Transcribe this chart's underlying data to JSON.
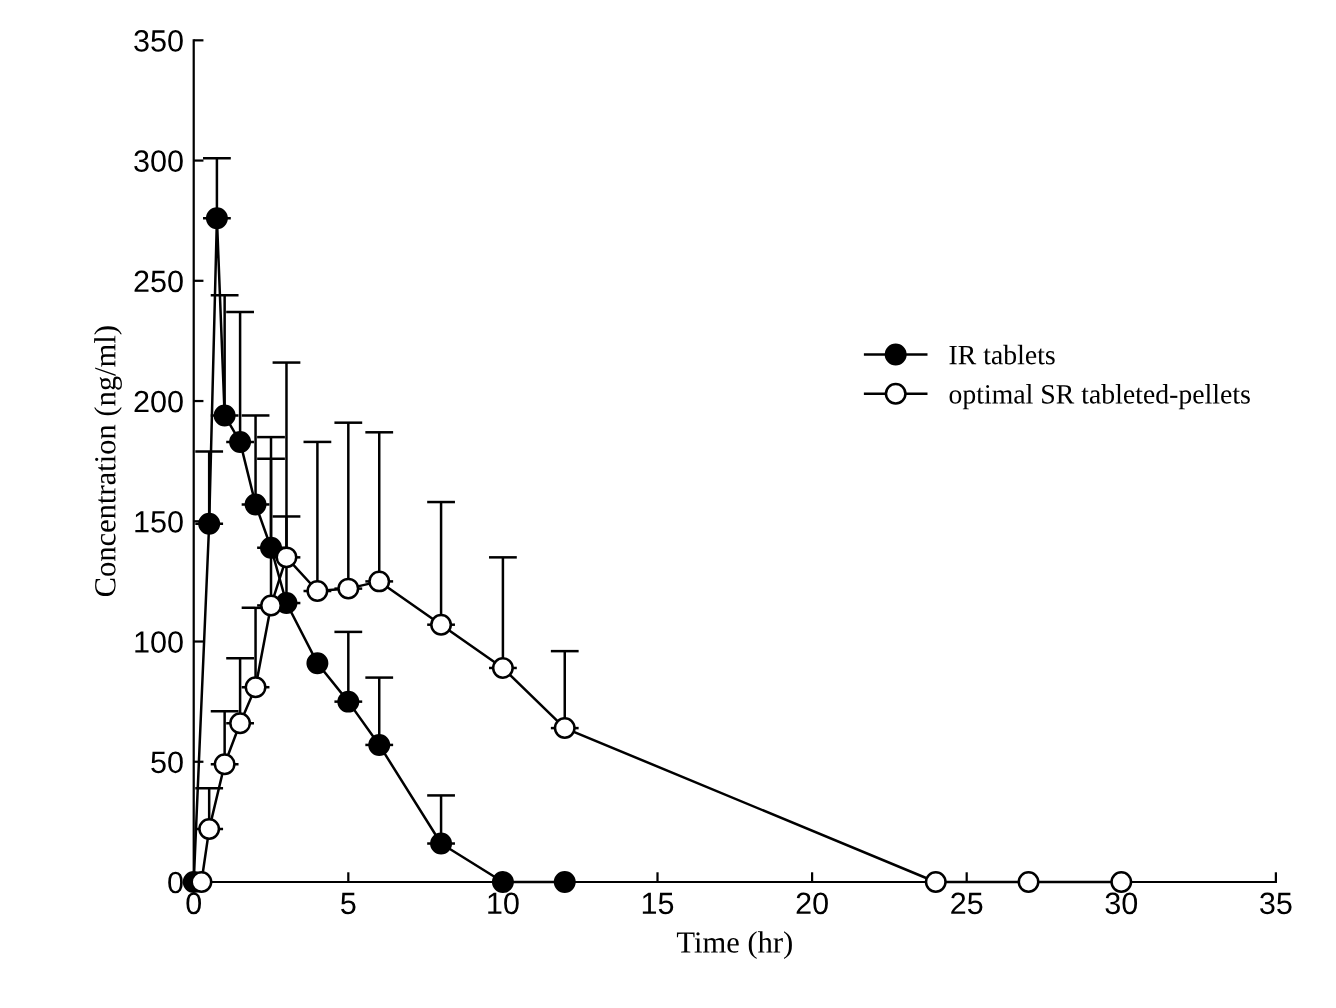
{
  "chart_data": {
    "type": "line",
    "xlabel": "Time (hr)",
    "ylabel": "Concentration (ng/ml)",
    "xlim": [
      0,
      35
    ],
    "xticks": [
      0,
      5,
      10,
      15,
      20,
      25,
      30,
      35
    ],
    "ylim": [
      0,
      350
    ],
    "yticks": [
      0,
      50,
      100,
      150,
      200,
      250,
      300,
      350
    ],
    "grid": false,
    "legend": "right",
    "line_style": "solid",
    "series": [
      {
        "name": "IR tablets",
        "color": "#000000",
        "marker": "circle",
        "x": [
          0,
          0.5,
          0.75,
          1,
          1.5,
          2,
          2.5,
          3,
          4,
          5,
          6,
          8,
          10,
          12
        ],
        "values": [
          0,
          149,
          276,
          194,
          183,
          157,
          139,
          116,
          91,
          75,
          57,
          16,
          0,
          0
        ],
        "errors": [
          null,
          [
            149,
            179
          ],
          [
            276,
            301
          ],
          [
            194,
            244
          ],
          [
            183,
            237
          ],
          [
            157,
            194
          ],
          [
            139,
            185
          ],
          [
            116,
            152
          ],
          null,
          [
            75,
            104
          ],
          [
            57,
            85
          ],
          [
            16,
            36
          ],
          null,
          null
        ]
      },
      {
        "name": "optimal SR tableted-pellets",
        "color": "#ffffff",
        "marker": "circle",
        "x": [
          0.25,
          0.5,
          1,
          1.5,
          2,
          2.5,
          3,
          4,
          5,
          6,
          8,
          10,
          12,
          24,
          27,
          30
        ],
        "values": [
          0,
          22,
          49,
          66,
          81,
          115,
          135,
          121,
          122,
          125,
          107,
          89,
          64,
          0,
          0,
          0
        ],
        "errors": [
          null,
          [
            22,
            39
          ],
          [
            49,
            71
          ],
          [
            66,
            93
          ],
          [
            81,
            114
          ],
          [
            115,
            176
          ],
          [
            135,
            216
          ],
          [
            121,
            183
          ],
          [
            122,
            191
          ],
          [
            125,
            187
          ],
          [
            107,
            158
          ],
          [
            89,
            135
          ],
          [
            64,
            96
          ],
          null,
          null,
          null
        ]
      }
    ]
  }
}
